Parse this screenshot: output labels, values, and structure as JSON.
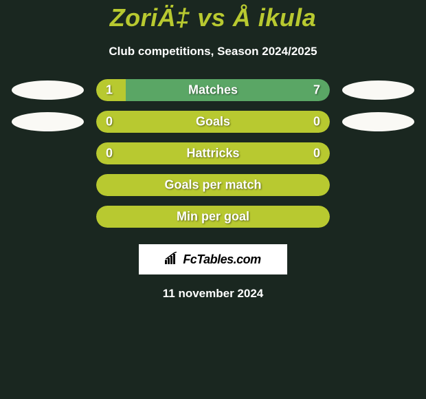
{
  "title": "ZoriÄ‡ vs Å ikula",
  "subtitle": "Club competitions, Season 2024/2025",
  "avatars": {
    "left_color": "#faf9f5",
    "right_color": "#faf9f5"
  },
  "stats": [
    {
      "label": "Matches",
      "left_value": "1",
      "right_value": "7",
      "left_percent": 12.5,
      "left_color": "#b8c930",
      "right_color": "#5aa665",
      "show_avatars": true
    },
    {
      "label": "Goals",
      "left_value": "0",
      "right_value": "0",
      "left_percent": 50,
      "left_color": "#b8c930",
      "right_color": "#b8c930",
      "show_avatars": true
    },
    {
      "label": "Hattricks",
      "left_value": "0",
      "right_value": "0",
      "left_percent": 50,
      "left_color": "#b8c930",
      "right_color": "#b8c930",
      "show_avatars": false
    },
    {
      "label": "Goals per match",
      "left_value": "",
      "right_value": "",
      "left_percent": 50,
      "left_color": "#b8c930",
      "right_color": "#b8c930",
      "show_avatars": false
    },
    {
      "label": "Min per goal",
      "left_value": "",
      "right_value": "",
      "left_percent": 50,
      "left_color": "#b8c930",
      "right_color": "#b8c930",
      "show_avatars": false
    }
  ],
  "footer_brand": "FcTables.com",
  "date_text": "11 november 2024",
  "background_color": "#1a2720",
  "title_color": "#b8c930",
  "text_color": "#ffffff"
}
